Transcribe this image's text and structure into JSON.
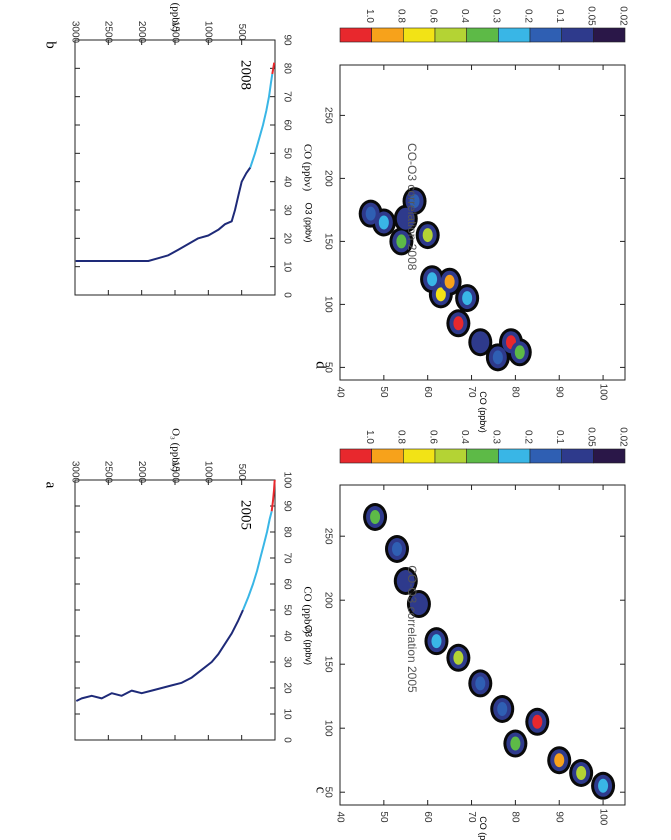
{
  "chart_data": [
    {
      "id": "a",
      "type": "line",
      "panel_letter": "a",
      "year_label": "2005",
      "xlabel": "CO (ppbv)",
      "ylabel": "O₃ (ppbv)",
      "xlim": [
        0,
        100
      ],
      "ylim": [
        0,
        3000
      ],
      "xticks": [
        0,
        10,
        20,
        30,
        40,
        50,
        60,
        70,
        80,
        90,
        100
      ],
      "yticks": [
        500,
        1000,
        1500,
        2000,
        2500,
        3000
      ],
      "series": [
        {
          "color": "#1e2a78",
          "points": [
            [
              15,
              2980
            ],
            [
              16,
              2900
            ],
            [
              17,
              2750
            ],
            [
              16,
              2600
            ],
            [
              18,
              2450
            ],
            [
              17,
              2300
            ],
            [
              19,
              2150
            ],
            [
              18,
              2000
            ],
            [
              19,
              1850
            ],
            [
              20,
              1700
            ],
            [
              21,
              1550
            ],
            [
              22,
              1400
            ],
            [
              24,
              1250
            ],
            [
              27,
              1100
            ],
            [
              30,
              950
            ],
            [
              33,
              850
            ],
            [
              37,
              750
            ],
            [
              41,
              650
            ],
            [
              46,
              550
            ],
            [
              50,
              480
            ]
          ]
        },
        {
          "color": "#39b6e6",
          "points": [
            [
              50,
              480
            ],
            [
              55,
              400
            ],
            [
              60,
              330
            ],
            [
              65,
              270
            ],
            [
              70,
              220
            ],
            [
              75,
              170
            ],
            [
              80,
              120
            ],
            [
              85,
              80
            ],
            [
              88,
              50
            ]
          ]
        },
        {
          "color": "#e8282d",
          "points": [
            [
              88,
              50
            ],
            [
              92,
              30
            ],
            [
              96,
              15
            ],
            [
              100,
              5
            ]
          ]
        }
      ]
    },
    {
      "id": "b",
      "type": "line",
      "panel_letter": "b",
      "year_label": "2008",
      "xlabel": "CO (ppbv)",
      "ylabel": "O₃ (ppbv)",
      "xlim": [
        0,
        90
      ],
      "ylim": [
        0,
        3000
      ],
      "xticks": [
        0,
        10,
        20,
        30,
        40,
        50,
        60,
        70,
        80,
        90
      ],
      "yticks": [
        500,
        1000,
        1500,
        2000,
        2500,
        3000
      ],
      "series": [
        {
          "color": "#1e2a78",
          "points": [
            [
              12,
              2990
            ],
            [
              12,
              2800
            ],
            [
              12,
              2500
            ],
            [
              12,
              2200
            ],
            [
              12,
              1900
            ],
            [
              13,
              1750
            ],
            [
              14,
              1600
            ],
            [
              16,
              1450
            ],
            [
              18,
              1300
            ],
            [
              20,
              1150
            ],
            [
              21,
              1000
            ],
            [
              23,
              850
            ],
            [
              25,
              750
            ],
            [
              26,
              650
            ],
            [
              30,
              600
            ],
            [
              35,
              550
            ],
            [
              40,
              500
            ],
            [
              43,
              430
            ],
            [
              45,
              370
            ]
          ]
        },
        {
          "color": "#39b6e6",
          "points": [
            [
              45,
              370
            ],
            [
              50,
              300
            ],
            [
              55,
              240
            ],
            [
              60,
              180
            ],
            [
              65,
              130
            ],
            [
              70,
              90
            ],
            [
              75,
              60
            ],
            [
              78,
              40
            ]
          ]
        },
        {
          "color": "#e8282d",
          "points": [
            [
              78,
              40
            ],
            [
              80,
              25
            ],
            [
              82,
              12
            ]
          ]
        }
      ]
    },
    {
      "id": "c",
      "type": "heatmap",
      "panel_letter": "c",
      "title": "CO-O3 correlation 2005",
      "xlabel": "CO (ppbv)",
      "ylabel": "O3 (ppbv)",
      "xlim": [
        40,
        105
      ],
      "ylim": [
        40,
        290
      ],
      "xticks": [
        40,
        50,
        60,
        70,
        80,
        90,
        100
      ],
      "yticks": [
        50,
        100,
        150,
        200,
        250
      ],
      "blobs": [
        {
          "co": 48,
          "o3": 265,
          "level": 0.3
        },
        {
          "co": 53,
          "o3": 240,
          "level": 0.1
        },
        {
          "co": 55,
          "o3": 215,
          "level": 0.05
        },
        {
          "co": 58,
          "o3": 197,
          "level": 0.05
        },
        {
          "co": 62,
          "o3": 168,
          "level": 0.2
        },
        {
          "co": 67,
          "o3": 155,
          "level": 0.4
        },
        {
          "co": 72,
          "o3": 135,
          "level": 0.1
        },
        {
          "co": 77,
          "o3": 115,
          "level": 0.1
        },
        {
          "co": 80,
          "o3": 88,
          "level": 0.3
        },
        {
          "co": 85,
          "o3": 105,
          "level": 1.0
        },
        {
          "co": 90,
          "o3": 75,
          "level": 0.8
        },
        {
          "co": 95,
          "o3": 65,
          "level": 0.4
        },
        {
          "co": 100,
          "o3": 55,
          "level": 0.2
        }
      ]
    },
    {
      "id": "d",
      "type": "heatmap",
      "panel_letter": "d",
      "title": "CO-O3 correlation 2008",
      "xlabel": "CO (ppbv)",
      "ylabel": "O3 (ppbv)",
      "xlim": [
        40,
        105
      ],
      "ylim": [
        40,
        290
      ],
      "xticks": [
        40,
        50,
        60,
        70,
        80,
        90,
        100
      ],
      "yticks": [
        50,
        100,
        150,
        200,
        250
      ],
      "blobs": [
        {
          "co": 47,
          "o3": 172,
          "level": 0.1
        },
        {
          "co": 50,
          "o3": 165,
          "level": 0.2
        },
        {
          "co": 54,
          "o3": 150,
          "level": 0.3
        },
        {
          "co": 55,
          "o3": 168,
          "level": 0.05
        },
        {
          "co": 57,
          "o3": 182,
          "level": 0.1
        },
        {
          "co": 60,
          "o3": 155,
          "level": 0.4
        },
        {
          "co": 61,
          "o3": 120,
          "level": 0.2
        },
        {
          "co": 63,
          "o3": 108,
          "level": 0.6
        },
        {
          "co": 65,
          "o3": 118,
          "level": 0.8
        },
        {
          "co": 67,
          "o3": 85,
          "level": 1.0
        },
        {
          "co": 69,
          "o3": 105,
          "level": 0.2
        },
        {
          "co": 72,
          "o3": 70,
          "level": 0.05
        },
        {
          "co": 76,
          "o3": 58,
          "level": 0.1
        },
        {
          "co": 79,
          "o3": 70,
          "level": 1.0
        },
        {
          "co": 81,
          "o3": 62,
          "level": 0.3
        }
      ]
    }
  ],
  "colorbar": {
    "labels": [
      "1.0",
      "0.8",
      "0.6",
      "0.4",
      "0.3",
      "0.2",
      "0.1",
      "0.05",
      "0.02"
    ],
    "colors": [
      "#e8282d",
      "#f7a21b",
      "#f2e316",
      "#b4d334",
      "#5dba47",
      "#39b6e6",
      "#2f5fb3",
      "#2e3a8c",
      "#2a1748"
    ],
    "levels": [
      1.0,
      0.8,
      0.6,
      0.4,
      0.3,
      0.2,
      0.1,
      0.05,
      0.02
    ]
  }
}
